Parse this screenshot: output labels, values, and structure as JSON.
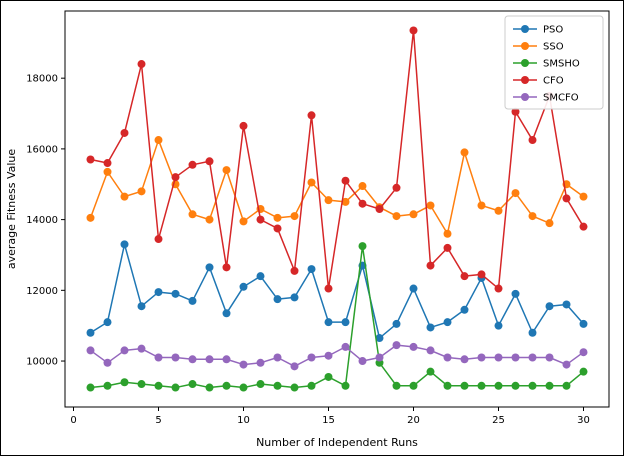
{
  "chart_data": {
    "type": "line",
    "title": "",
    "xlabel": "Number of Independent Runs",
    "ylabel": "average Fitness Value",
    "x": [
      1,
      2,
      3,
      4,
      5,
      6,
      7,
      8,
      9,
      10,
      11,
      12,
      13,
      14,
      15,
      16,
      17,
      18,
      19,
      20,
      21,
      22,
      23,
      24,
      25,
      26,
      27,
      28,
      29,
      30
    ],
    "xticks": [
      0,
      5,
      10,
      15,
      20,
      25,
      30
    ],
    "yticks": [
      10000,
      12000,
      14000,
      16000,
      18000
    ],
    "xlim": [
      -0.5,
      31.5
    ],
    "ylim": [
      8700,
      19900
    ],
    "grid": false,
    "legend_position": "upper right",
    "series": [
      {
        "name": "PSO",
        "color": "#1f77b4",
        "values": [
          10800,
          11100,
          13300,
          11550,
          11950,
          11900,
          11700,
          12650,
          11350,
          12100,
          12400,
          11750,
          11800,
          12600,
          11100,
          11100,
          12700,
          10650,
          11050,
          12050,
          10950,
          11100,
          11450,
          12350,
          11000,
          11900,
          10800,
          11550,
          11600,
          11050
        ]
      },
      {
        "name": "SSO",
        "color": "#ff7f0e",
        "values": [
          14050,
          15350,
          14650,
          14800,
          16250,
          15000,
          14150,
          14000,
          15400,
          13950,
          14300,
          14050,
          14100,
          15050,
          14550,
          14500,
          14950,
          14350,
          14100,
          14150,
          14400,
          13600,
          15900,
          14400,
          14250,
          14750,
          14100,
          13900,
          15000,
          14650
        ]
      },
      {
        "name": "SMSHO",
        "color": "#2ca02c",
        "values": [
          9250,
          9300,
          9400,
          9350,
          9300,
          9250,
          9350,
          9250,
          9300,
          9250,
          9350,
          9300,
          9250,
          9300,
          9550,
          9300,
          13250,
          9950,
          9300,
          9300,
          9700,
          9300,
          9300,
          9300,
          9300,
          9300,
          9300,
          9300,
          9300,
          9700
        ]
      },
      {
        "name": "CFO",
        "color": "#d62728",
        "values": [
          15700,
          15600,
          16450,
          18400,
          13450,
          15200,
          15550,
          15650,
          12650,
          16650,
          14000,
          13750,
          12550,
          16950,
          12050,
          15100,
          14450,
          14300,
          14900,
          19350,
          12700,
          13200,
          12400,
          12450,
          12050,
          17050,
          16250,
          17500,
          14600,
          13800
        ]
      },
      {
        "name": "SMCFO",
        "color": "#9467bd",
        "values": [
          10300,
          9950,
          10300,
          10350,
          10100,
          10100,
          10050,
          10050,
          10050,
          9900,
          9950,
          10100,
          9850,
          10100,
          10150,
          10400,
          10000,
          10100,
          10450,
          10400,
          10300,
          10100,
          10050,
          10100,
          10100,
          10100,
          10100,
          10100,
          9900,
          10250
        ]
      }
    ]
  }
}
